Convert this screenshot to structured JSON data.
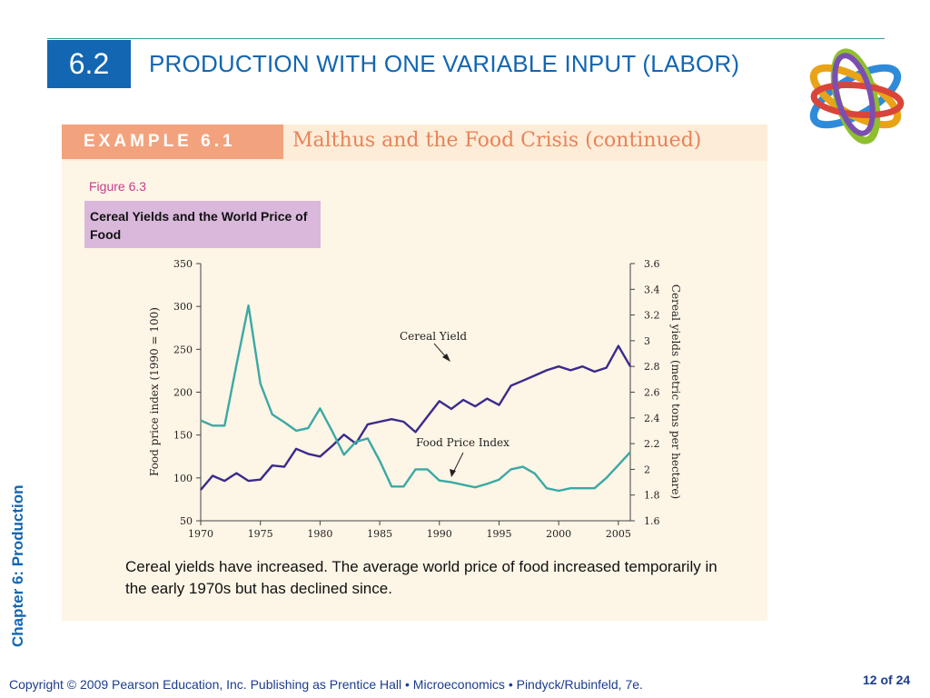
{
  "slide": {
    "section_number": "6.2",
    "title": "PRODUCTION WITH ONE VARIABLE INPUT (LABOR)",
    "chapter_label": "Chapter 6:  Production",
    "copyright": "Copyright © 2009 Pearson Education, Inc. Publishing as Prentice Hall  •  Microeconomics  •  Pindyck/Rubinfeld, 7e.",
    "page_number": "12 of 24",
    "logo_icon": "interlocking-rings-icon"
  },
  "example": {
    "tag": "EXAMPLE 6.1",
    "title": "Malthus and the Food Crisis (continued)",
    "figure_label": "Figure 6.3",
    "caption": "Cereal Yields and the World Price of Food",
    "body": "Cereal yields have increased. The average world price of food increased temporarily in the early 1970s but has declined since."
  },
  "colors": {
    "accent_blue": "#1366b1",
    "cereal_line": "#3b2a8c",
    "food_line": "#3aa9a4",
    "example_tag": "#f2a37e",
    "caption_bg": "#d9b8dc"
  },
  "chart_data": {
    "type": "line",
    "title": "",
    "xlabel": "",
    "ylabel": "Food price index (1990 = 100)",
    "y2label": "Cereal yields (metric tons per hectare)",
    "xlim": [
      1970,
      2006
    ],
    "ylim": [
      50,
      350
    ],
    "y2lim": [
      1.6,
      3.6
    ],
    "x_ticks": [
      "1970",
      "1975",
      "1980",
      "1985",
      "1990",
      "1995",
      "2000",
      "2005"
    ],
    "y_ticks": [
      "50",
      "100",
      "150",
      "200",
      "250",
      "300",
      "350"
    ],
    "y2_ticks": [
      "1.6",
      "1.8",
      "2",
      "2.2",
      "2.4",
      "2.6",
      "2.8",
      "3",
      "3.2",
      "3.4",
      "3.6"
    ],
    "annotations": [
      "Cereal Yield",
      "Food Price Index"
    ],
    "grid": false,
    "series": [
      {
        "name": "Cereal Yield",
        "axis": "right",
        "color": "#3b2a8c",
        "x": [
          1970,
          1971,
          1972,
          1973,
          1974,
          1975,
          1976,
          1977,
          1978,
          1979,
          1980,
          1981,
          1982,
          1983,
          1984,
          1985,
          1986,
          1987,
          1988,
          1989,
          1990,
          1991,
          1992,
          1993,
          1994,
          1995,
          1996,
          1997,
          1998,
          1999,
          2000,
          2001,
          2002,
          2003,
          2004,
          2005,
          2006
        ],
        "values": [
          1.84,
          1.95,
          1.91,
          1.97,
          1.91,
          1.92,
          2.03,
          2.02,
          2.16,
          2.12,
          2.1,
          2.18,
          2.27,
          2.2,
          2.35,
          2.37,
          2.39,
          2.37,
          2.29,
          2.41,
          2.53,
          2.47,
          2.54,
          2.49,
          2.55,
          2.5,
          2.65,
          2.69,
          2.73,
          2.77,
          2.8,
          2.77,
          2.8,
          2.76,
          2.79,
          2.96,
          2.8
        ]
      },
      {
        "name": "Food Price Index",
        "axis": "left",
        "color": "#3aa9a4",
        "x": [
          1970,
          1971,
          1972,
          1973,
          1974,
          1975,
          1976,
          1977,
          1978,
          1979,
          1980,
          1981,
          1982,
          1983,
          1984,
          1985,
          1986,
          1987,
          1988,
          1989,
          1990,
          1991,
          1992,
          1993,
          1994,
          1995,
          1996,
          1997,
          1998,
          1999,
          2000,
          2001,
          2002,
          2003,
          2004,
          2005,
          2006
        ],
        "values": [
          167,
          161,
          161,
          232,
          301,
          210,
          174,
          165,
          155,
          158,
          181,
          155,
          127,
          142,
          146,
          120,
          90,
          90,
          110,
          110,
          97,
          95,
          92,
          89,
          93,
          98,
          110,
          113,
          105,
          88,
          85,
          88,
          88,
          88,
          100,
          115,
          130
        ]
      }
    ]
  }
}
